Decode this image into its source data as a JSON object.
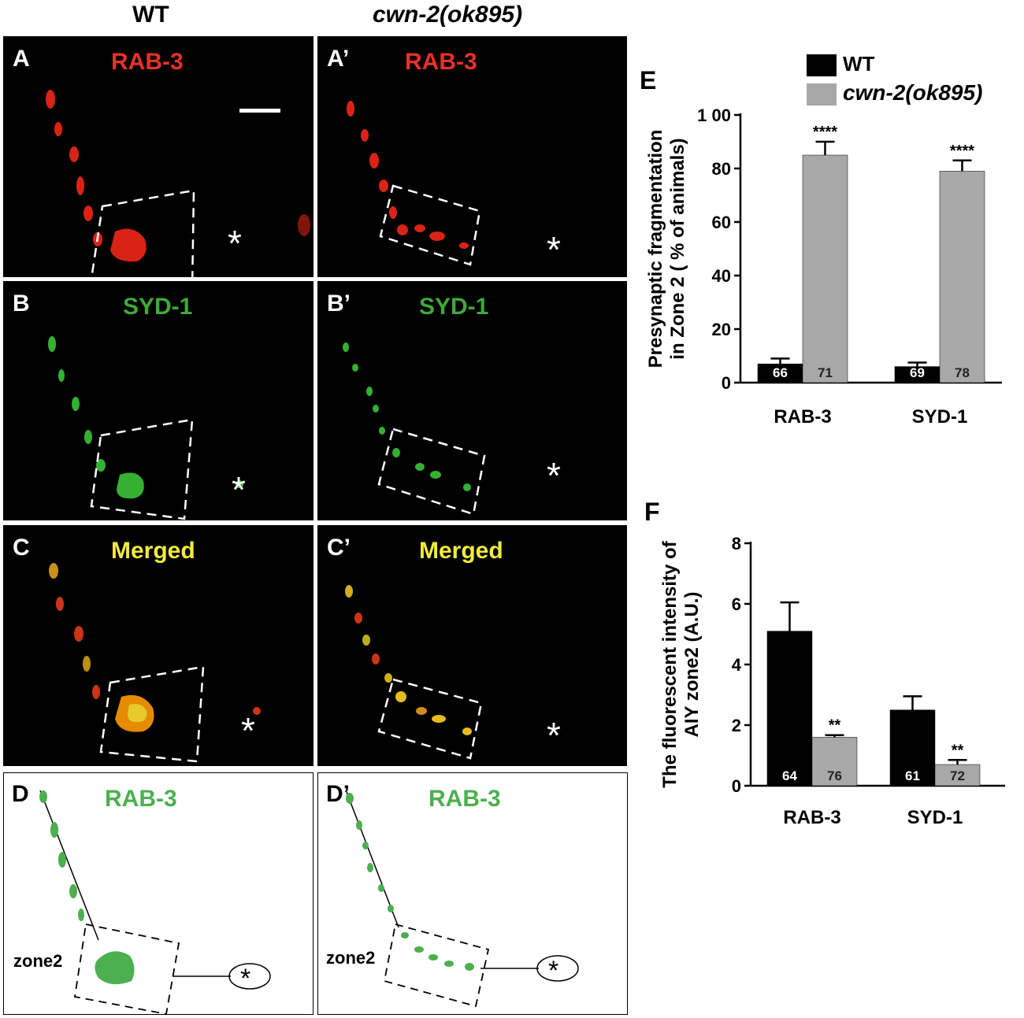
{
  "headers": {
    "wt": "WT",
    "mutant": "cwn-2(ok895)"
  },
  "panels": {
    "A": {
      "label": "A",
      "title": "RAB-3",
      "title_color": "#e8312a"
    },
    "A2": {
      "label": "A’",
      "title": "RAB-3",
      "title_color": "#e8312a"
    },
    "B": {
      "label": "B",
      "title": "SYD-1",
      "title_color": "#3ea93a"
    },
    "B2": {
      "label": "B’",
      "title": "SYD-1",
      "title_color": "#3ea93a"
    },
    "C": {
      "label": "C",
      "title": "Merged",
      "title_color": "#f3ec3a"
    },
    "C2": {
      "label": "C’",
      "title": "Merged",
      "title_color": "#f3ec3a"
    },
    "D": {
      "label": "D",
      "title": "RAB-3",
      "zone_label": "zone2"
    },
    "D2": {
      "label": "D’",
      "title": "RAB-3",
      "zone_label": "zone2"
    }
  },
  "asterisk": "*",
  "legend": [
    {
      "name": "WT",
      "color": "#000000"
    },
    {
      "name": "cwn-2(ok895)",
      "color": "#a8a8a8"
    }
  ],
  "chart_data": [
    {
      "panel_label": "E",
      "type": "bar",
      "categories": [
        "RAB-3",
        "SYD-1"
      ],
      "series": [
        {
          "name": "WT",
          "color": "#000000",
          "values": [
            7,
            6
          ],
          "errors": [
            2,
            1.5
          ],
          "n": [
            "66",
            "69"
          ],
          "sig": [
            "",
            ""
          ]
        },
        {
          "name": "cwn-2(ok895)",
          "color": "#a8a8a8",
          "values": [
            85,
            79
          ],
          "errors": [
            5,
            4
          ],
          "n": [
            "71",
            "78"
          ],
          "sig": [
            "****",
            "****"
          ]
        }
      ],
      "ylim": [
        0,
        100
      ],
      "yticks": [
        0,
        20,
        40,
        60,
        80,
        100
      ],
      "ytick_labels": [
        "0",
        "20",
        "40",
        "60",
        "80",
        "1 00"
      ],
      "ylabel": [
        "Presynaptic  fragmentation",
        "in  Zone 2 ( % of animals)"
      ],
      "xlabel": ""
    },
    {
      "panel_label": "F",
      "type": "bar",
      "categories": [
        "RAB-3",
        "SYD-1"
      ],
      "series": [
        {
          "name": "WT",
          "color": "#000000",
          "values": [
            5.1,
            2.5
          ],
          "errors": [
            0.95,
            0.45
          ],
          "n": [
            "64",
            "61"
          ],
          "sig": [
            "",
            ""
          ]
        },
        {
          "name": "cwn-2(ok895)",
          "color": "#a8a8a8",
          "values": [
            1.6,
            0.7
          ],
          "errors": [
            0.07,
            0.15
          ],
          "n": [
            "76",
            "72"
          ],
          "sig": [
            "**",
            "**"
          ]
        }
      ],
      "ylim": [
        0,
        8
      ],
      "yticks": [
        0,
        2,
        4,
        6,
        8
      ],
      "ytick_labels": [
        "0",
        "2",
        "4",
        "6",
        "8"
      ],
      "ylabel": [
        "The fluorescent intensity of",
        "AIY zone2 (A.U.)"
      ],
      "xlabel": ""
    }
  ]
}
